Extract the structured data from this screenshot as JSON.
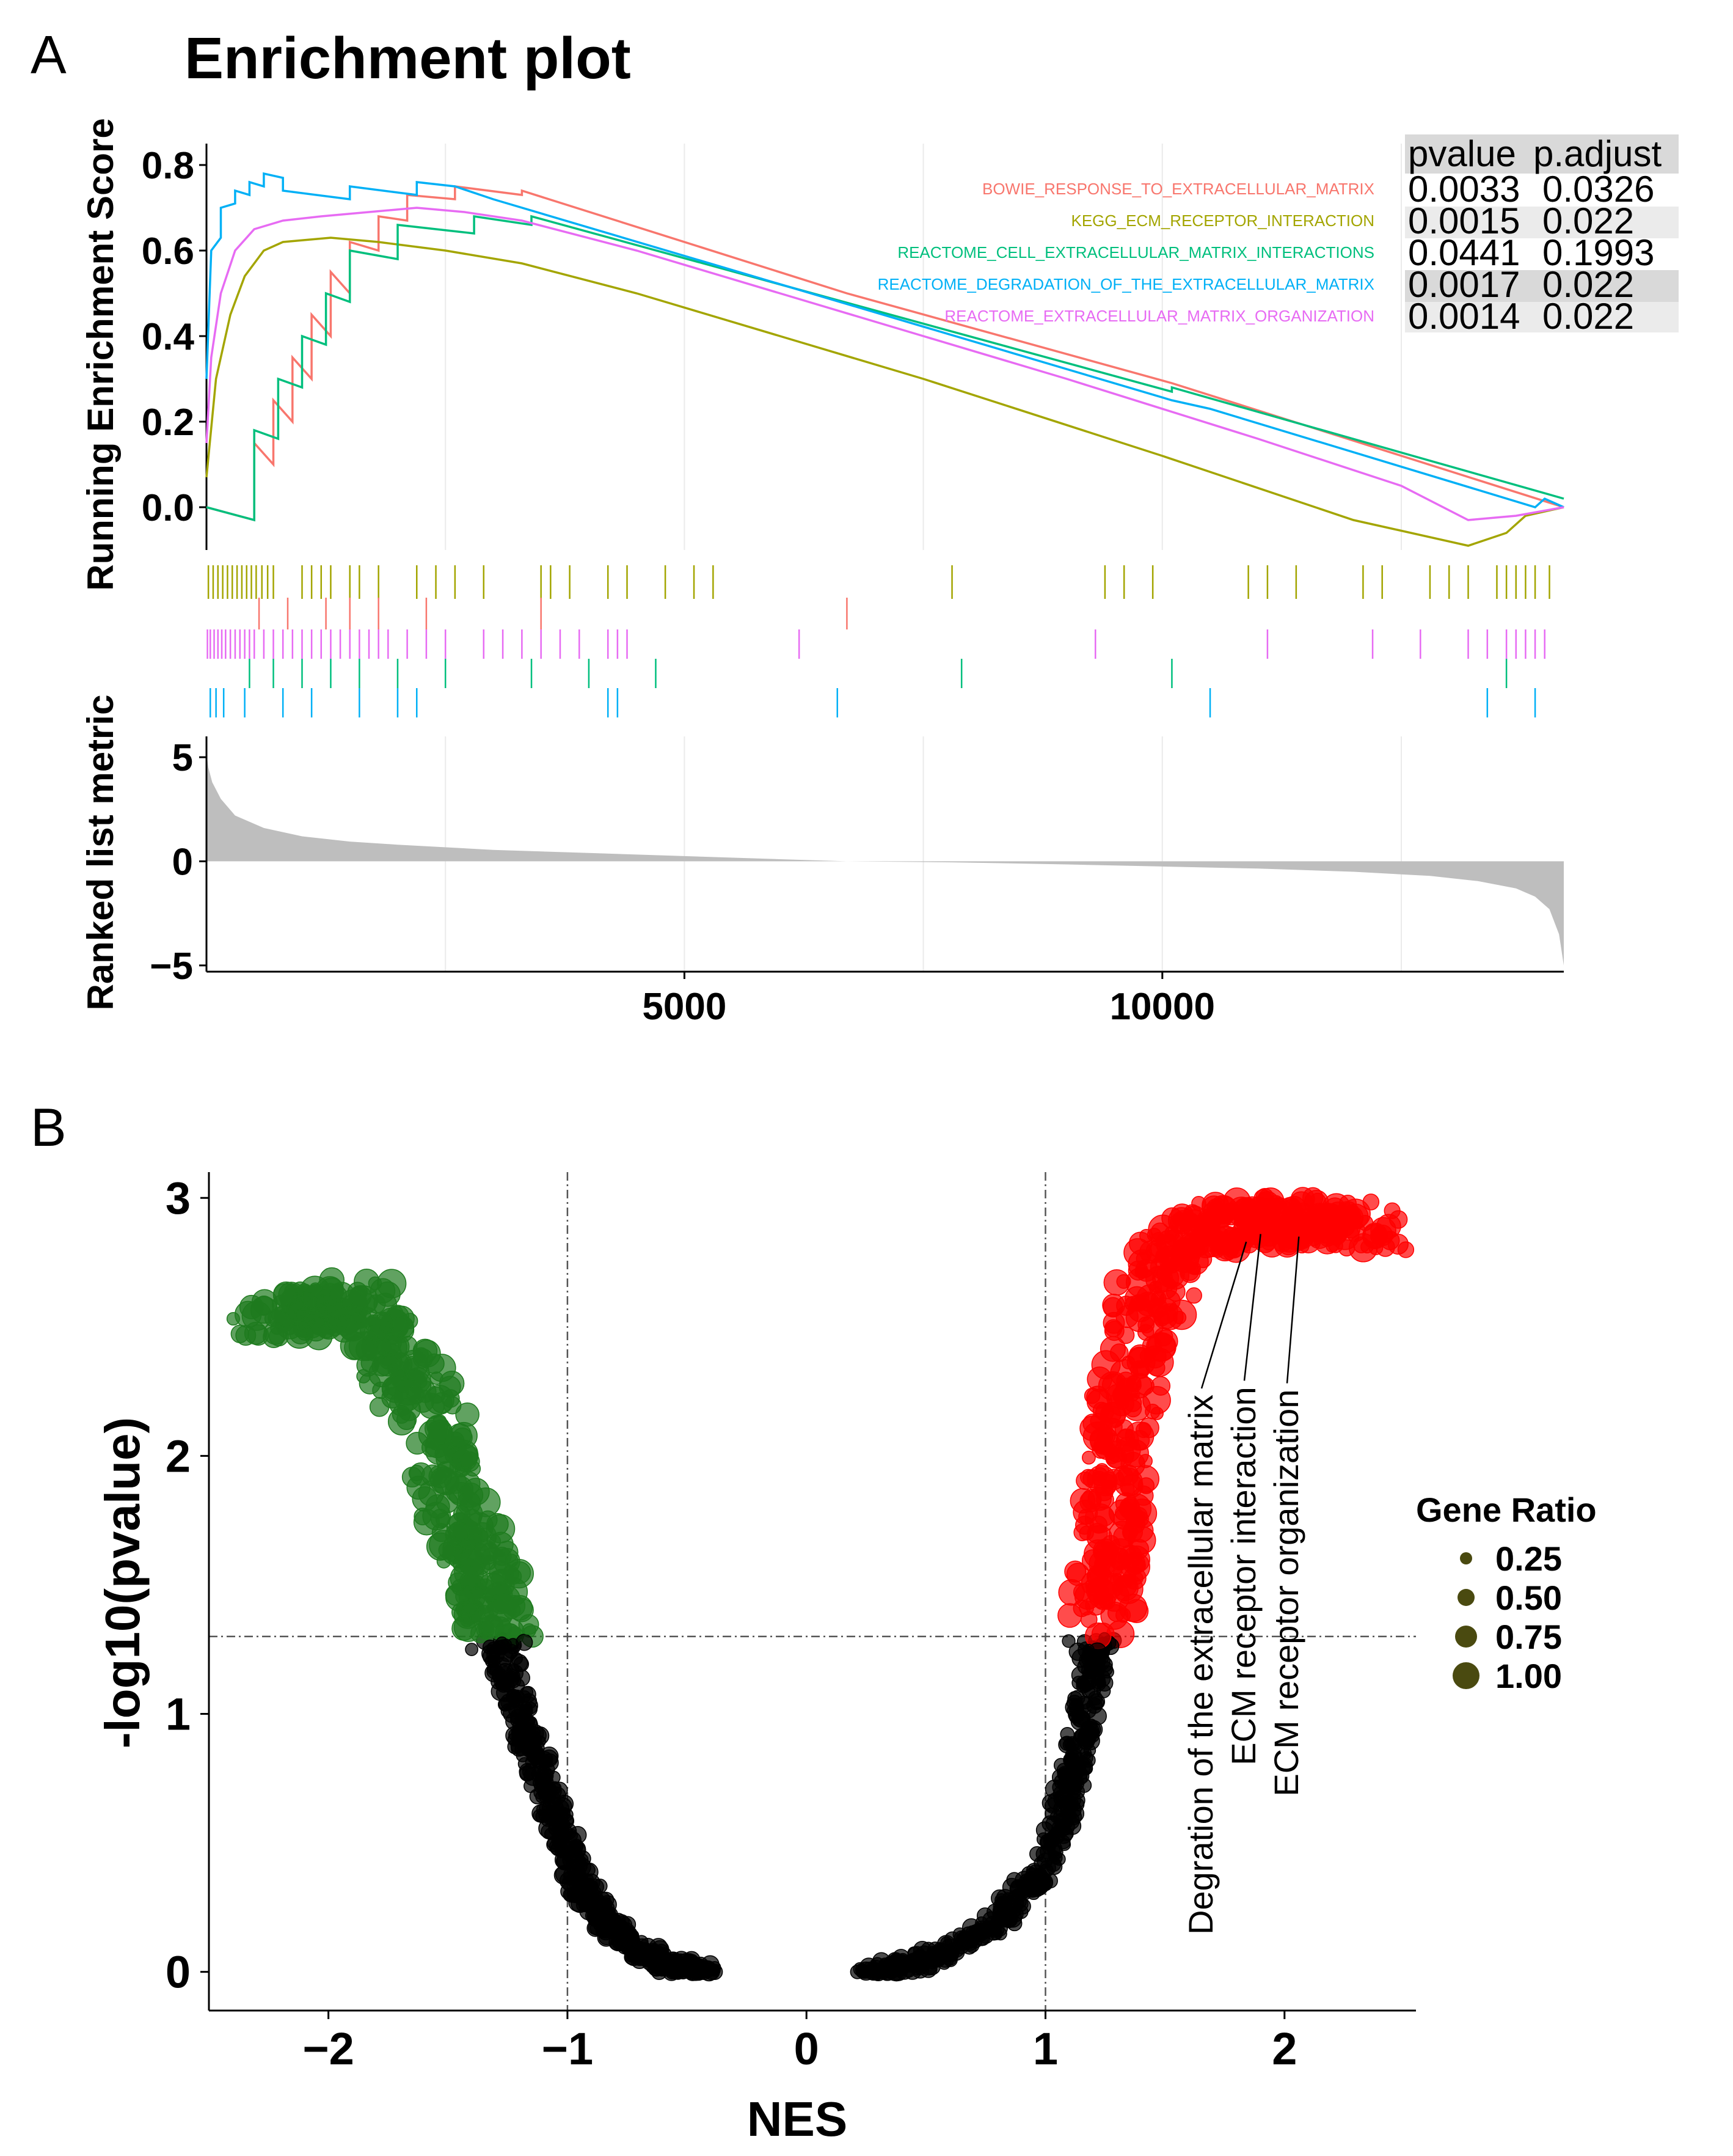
{
  "panel_a": {
    "letter": "A",
    "title": "Enrichment plot",
    "ylabel_top": "Running Enrichment Score",
    "ylabel_bottom": "Ranked list metric",
    "table_headers": [
      "pvalue",
      "p.adjust"
    ],
    "colors": {
      "bowie": "#F8766D",
      "kegg": "#A3A500",
      "cell": "#00BF7D",
      "degradation": "#00B0F6",
      "organization": "#E76BF3",
      "ranked_fill": "#BEBEBE",
      "table_header_bg": "#D9D9D9",
      "table_row_bg": "#EBEBEB"
    }
  },
  "panel_b": {
    "letter": "B",
    "xlabel": "NES",
    "ylabel": "-log10(pvalue)",
    "legend_title": "Gene Ratio",
    "legend_items": [
      "0.25",
      "0.50",
      "0.75",
      "1.00"
    ],
    "annotations": [
      "Degration of the extracellular matrix",
      "ECM receptor interaction",
      "ECM receptor organization"
    ],
    "colors": {
      "neg_sig": "#1E7B1E",
      "pos_sig": "#FF0000",
      "nonsig": "#000000",
      "legend_point": "#4A4A10"
    }
  },
  "chart_data": [
    {
      "type": "line",
      "title": "Enrichment plot",
      "ylabel": "Running Enrichment Score",
      "xlim": [
        0,
        14200
      ],
      "ylim": [
        -0.1,
        0.85
      ],
      "yticks": [
        0.0,
        0.2,
        0.4,
        0.6,
        0.8
      ],
      "ytick_labels": [
        "0.0",
        "0.2",
        "0.4",
        "0.6",
        "0.8"
      ],
      "grid": true,
      "series": [
        {
          "name": "BOWIE_RESPONSE_TO_EXTRACELLULAR_MATRIX",
          "pvalue": "0.0033",
          "p_adjust": "0.0326",
          "x": [
            0,
            500,
            500,
            700,
            700,
            900,
            900,
            1100,
            1100,
            1300,
            1300,
            1500,
            1500,
            1800,
            1800,
            2100,
            2100,
            2600,
            2600,
            3300,
            3300,
            6700,
            10100,
            14200
          ],
          "y": [
            0.0,
            -0.03,
            0.15,
            0.1,
            0.25,
            0.2,
            0.35,
            0.3,
            0.45,
            0.4,
            0.55,
            0.5,
            0.62,
            0.6,
            0.68,
            0.67,
            0.73,
            0.72,
            0.75,
            0.73,
            0.74,
            0.5,
            0.29,
            0.0
          ]
        },
        {
          "name": "KEGG_ECM_RECEPTOR_INTERACTION",
          "pvalue": "0.0015",
          "p_adjust": "0.022",
          "x": [
            0,
            100,
            250,
            400,
            600,
            800,
            1300,
            1800,
            2500,
            3300,
            4500,
            6000,
            7500,
            10000,
            12000,
            13200,
            13600,
            13800,
            14200
          ],
          "y": [
            0.07,
            0.3,
            0.45,
            0.54,
            0.6,
            0.62,
            0.63,
            0.62,
            0.6,
            0.57,
            0.5,
            0.4,
            0.3,
            0.12,
            -0.03,
            -0.09,
            -0.06,
            -0.02,
            0.0
          ]
        },
        {
          "name": "REACTOME_CELL_EXTRACELLULAR_MATRIX_INTERACTIONS",
          "pvalue": "0.0441",
          "p_adjust": "0.1993",
          "x": [
            0,
            500,
            500,
            750,
            750,
            1000,
            1000,
            1250,
            1250,
            1500,
            1500,
            2000,
            2000,
            2800,
            2800,
            3400,
            3400,
            10100,
            10100,
            14200
          ],
          "y": [
            0.0,
            -0.03,
            0.18,
            0.16,
            0.3,
            0.28,
            0.4,
            0.38,
            0.5,
            0.48,
            0.6,
            0.58,
            0.66,
            0.64,
            0.68,
            0.66,
            0.68,
            0.27,
            0.28,
            0.02
          ]
        },
        {
          "name": "REACTOME_DEGRADATION_OF_THE_EXTRACELLULAR_MATRIX",
          "pvalue": "0.0017",
          "p_adjust": "0.022",
          "x": [
            0,
            50,
            150,
            150,
            300,
            300,
            450,
            450,
            600,
            600,
            800,
            800,
            1500,
            1500,
            2200,
            2200,
            2600,
            3000,
            10100,
            10500,
            13900,
            14000,
            14200
          ],
          "y": [
            0.3,
            0.6,
            0.63,
            0.7,
            0.71,
            0.74,
            0.73,
            0.76,
            0.75,
            0.78,
            0.77,
            0.74,
            0.72,
            0.75,
            0.73,
            0.76,
            0.75,
            0.72,
            0.25,
            0.23,
            0.0,
            0.02,
            0.0
          ]
        },
        {
          "name": "REACTOME_EXTRACELLULAR_MATRIX_ORGANIZATION",
          "pvalue": "0.0014",
          "p_adjust": "0.022",
          "x": [
            0,
            50,
            150,
            300,
            500,
            800,
            1200,
            1700,
            2200,
            2700,
            3300,
            4500,
            6000,
            7500,
            9000,
            11000,
            12500,
            13200,
            13700,
            14200
          ],
          "y": [
            0.15,
            0.35,
            0.5,
            0.6,
            0.65,
            0.67,
            0.68,
            0.69,
            0.7,
            0.69,
            0.67,
            0.6,
            0.5,
            0.4,
            0.3,
            0.16,
            0.05,
            -0.03,
            -0.02,
            0.0
          ]
        }
      ],
      "hits": {
        "KEGG_ECM_RECEPTOR_INTERACTION": [
          20,
          70,
          120,
          170,
          220,
          270,
          320,
          370,
          420,
          470,
          520,
          580,
          640,
          700,
          1000,
          1100,
          1200,
          1300,
          1500,
          1600,
          1800,
          2200,
          2400,
          2600,
          2900,
          3500,
          3600,
          3800,
          4200,
          4400,
          4800,
          5100,
          5300,
          7800,
          9400,
          9600,
          9900,
          10900,
          11100,
          11400,
          12100,
          12300,
          12800,
          13000,
          13200,
          13500,
          13600,
          13700,
          13800,
          13900,
          14050
        ],
        "BOWIE_RESPONSE_TO_EXTRACELLULAR_MATRIX": [
          550,
          850,
          1250,
          1500,
          1800,
          2300,
          3500,
          6700
        ],
        "REACTOME_EXTRACELLULAR_MATRIX_ORGANIZATION": [
          10,
          40,
          80,
          120,
          160,
          200,
          250,
          300,
          350,
          400,
          450,
          500,
          600,
          700,
          800,
          900,
          1000,
          1100,
          1200,
          1300,
          1400,
          1500,
          1600,
          1700,
          1800,
          1900,
          2100,
          2300,
          2500,
          2900,
          3100,
          3300,
          3500,
          3700,
          3900,
          4200,
          4300,
          4400,
          6200,
          9300,
          11100,
          12200,
          12700,
          13200,
          13400,
          13600,
          13700,
          13800,
          13900,
          14000
        ],
        "REACTOME_CELL_EXTRACELLULAR_MATRIX_INTERACTIONS": [
          450,
          700,
          1000,
          1300,
          1600,
          2000,
          2500,
          3400,
          4000,
          4700,
          7900,
          10100,
          13600
        ],
        "REACTOME_DEGRADATION_OF_THE_EXTRACELLULAR_MATRIX": [
          40,
          100,
          180,
          400,
          800,
          1100,
          1600,
          2000,
          2200,
          4200,
          4300,
          6600,
          10500,
          13400,
          13900
        ]
      }
    },
    {
      "type": "area",
      "ylabel": "Ranked list metric",
      "xlim": [
        0,
        14200
      ],
      "ylim": [
        -5.3,
        6
      ],
      "xticks": [
        5000,
        10000
      ],
      "xtick_labels": [
        "5000",
        "10000"
      ],
      "yticks": [
        -5,
        0,
        5
      ],
      "ytick_labels": [
        "−5",
        "0",
        "5"
      ],
      "x": [
        0,
        20,
        60,
        150,
        300,
        600,
        1000,
        1500,
        2000,
        3000,
        4000,
        5000,
        6000,
        6700,
        7800,
        9000,
        10000,
        11000,
        12000,
        12800,
        13300,
        13700,
        13900,
        14050,
        14150,
        14200
      ],
      "y": [
        5.2,
        4.5,
        3.8,
        3.0,
        2.2,
        1.6,
        1.2,
        0.95,
        0.8,
        0.55,
        0.4,
        0.25,
        0.1,
        0.0,
        -0.05,
        -0.15,
        -0.25,
        -0.35,
        -0.5,
        -0.7,
        -0.95,
        -1.3,
        -1.7,
        -2.3,
        -3.5,
        -5.0
      ]
    },
    {
      "type": "scatter",
      "xlabel": "NES",
      "ylabel": "-log10(pvalue)",
      "xlim": [
        -2.5,
        2.55
      ],
      "ylim": [
        -0.15,
        3.1
      ],
      "xticks": [
        -2,
        -1,
        0,
        1,
        2
      ],
      "xtick_labels": [
        "−2",
        "−1",
        "0",
        "1",
        "2"
      ],
      "yticks": [
        0,
        1,
        2,
        3
      ],
      "ytick_labels": [
        "0",
        "1",
        "2",
        "3"
      ],
      "thresholds": {
        "vertical": [
          -1,
          1
        ],
        "horizontal": 1.3
      },
      "legend": {
        "title": "Gene Ratio",
        "sizes": [
          0.25,
          0.5,
          0.75,
          1.0
        ],
        "position": "right"
      },
      "curves": {
        "negative": {
          "nes": [
            -2.3,
            -2.05,
            -1.85,
            -1.7,
            -1.55,
            -1.45,
            -1.35,
            -1.28,
            -1.22,
            -1.15,
            -1.05,
            -0.95,
            -0.85,
            -0.7,
            -0.55,
            -0.4
          ],
          "log_p": [
            2.55,
            2.55,
            2.6,
            2.35,
            2.1,
            1.75,
            1.55,
            1.3,
            1.05,
            0.85,
            0.6,
            0.35,
            0.2,
            0.08,
            0.02,
            0.0
          ]
        },
        "positive": {
          "nes": [
            0.25,
            0.4,
            0.6,
            0.8,
            0.95,
            1.05,
            1.12,
            1.18,
            1.22,
            1.26,
            1.3,
            1.35,
            1.45,
            1.6,
            1.8,
            2.0,
            2.2,
            2.4
          ],
          "log_p": [
            0.0,
            0.02,
            0.08,
            0.2,
            0.35,
            0.55,
            0.8,
            1.05,
            1.3,
            1.6,
            1.95,
            2.3,
            2.65,
            2.85,
            2.9,
            2.92,
            2.9,
            2.88
          ]
        }
      },
      "labeled_points": [
        {
          "label": "Degration of the extracellular matrix",
          "nes": 1.84,
          "log_p": 2.83
        },
        {
          "label": "ECM receptor interaction",
          "nes": 1.9,
          "log_p": 2.86
        },
        {
          "label": "ECM receptor organization",
          "nes": 2.06,
          "log_p": 2.85
        }
      ]
    }
  ]
}
